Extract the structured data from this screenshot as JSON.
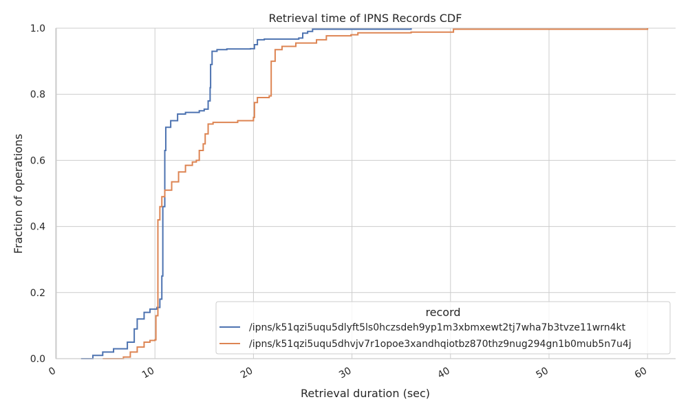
{
  "chart_data": {
    "type": "line",
    "title": "Retrieval time of IPNS Records CDF",
    "xlabel": "Retrieval duration (sec)",
    "ylabel": "Fraction of operations",
    "xlim": [
      0,
      63
    ],
    "ylim": [
      0,
      1
    ],
    "xticks": [
      "0",
      "10",
      "20",
      "30",
      "40",
      "50",
      "60"
    ],
    "yticks": [
      "0.0",
      "0.2",
      "0.4",
      "0.6",
      "0.8",
      "1.0"
    ],
    "grid": true,
    "legend": {
      "title": "record",
      "placement": "bottom-right"
    },
    "series": [
      {
        "name": "/ipns/k51qzi5uqu5dlyft5ls0hczsdeh9yp1m3xbmxewt2tj7wha7b3tvze11wrn4kt",
        "color": "#4c72b0",
        "x": [
          2.5,
          3.7,
          4.7,
          5.8,
          6.5,
          7.2,
          7.9,
          8.2,
          8.9,
          9.5,
          10.2,
          10.5,
          10.7,
          10.8,
          11.0,
          11.1,
          11.6,
          12.3,
          13.1,
          14.5,
          15.0,
          15.4,
          15.6,
          15.65,
          15.8,
          16.3,
          17.3,
          19.7,
          20.1,
          20.4,
          21.1,
          24.6,
          25.0,
          25.5,
          26.0,
          36.0
        ],
        "y": [
          0,
          0.01,
          0.02,
          0.03,
          0.03,
          0.05,
          0.09,
          0.12,
          0.14,
          0.15,
          0.155,
          0.18,
          0.25,
          0.46,
          0.63,
          0.7,
          0.72,
          0.74,
          0.745,
          0.75,
          0.755,
          0.78,
          0.82,
          0.89,
          0.93,
          0.935,
          0.937,
          0.938,
          0.95,
          0.965,
          0.967,
          0.97,
          0.985,
          0.99,
          0.997,
          1.0
        ]
      },
      {
        "name": "/ipns/k51qzi5uqu5dhvjv7r1opoe3xandhqiotbz870thz9nug294gn1b0mub5n7u4j",
        "color": "#dd8452",
        "x": [
          4.7,
          6.8,
          7.5,
          8.2,
          8.9,
          9.5,
          10.0,
          10.1,
          10.3,
          10.5,
          10.7,
          11.0,
          11.7,
          12.4,
          13.1,
          13.8,
          14.2,
          14.5,
          14.9,
          15.1,
          15.4,
          15.9,
          18.4,
          20.0,
          20.1,
          20.4,
          21.6,
          21.8,
          22.2,
          22.9,
          24.3,
          26.4,
          27.4,
          29.9,
          30.6,
          36.0,
          40.3,
          60.0
        ],
        "y": [
          0,
          0.005,
          0.02,
          0.035,
          0.05,
          0.055,
          0.057,
          0.13,
          0.42,
          0.46,
          0.49,
          0.51,
          0.535,
          0.565,
          0.585,
          0.595,
          0.6,
          0.63,
          0.65,
          0.68,
          0.71,
          0.715,
          0.72,
          0.73,
          0.775,
          0.79,
          0.795,
          0.9,
          0.935,
          0.945,
          0.955,
          0.965,
          0.977,
          0.98,
          0.986,
          0.988,
          0.997,
          1.0
        ]
      }
    ]
  }
}
